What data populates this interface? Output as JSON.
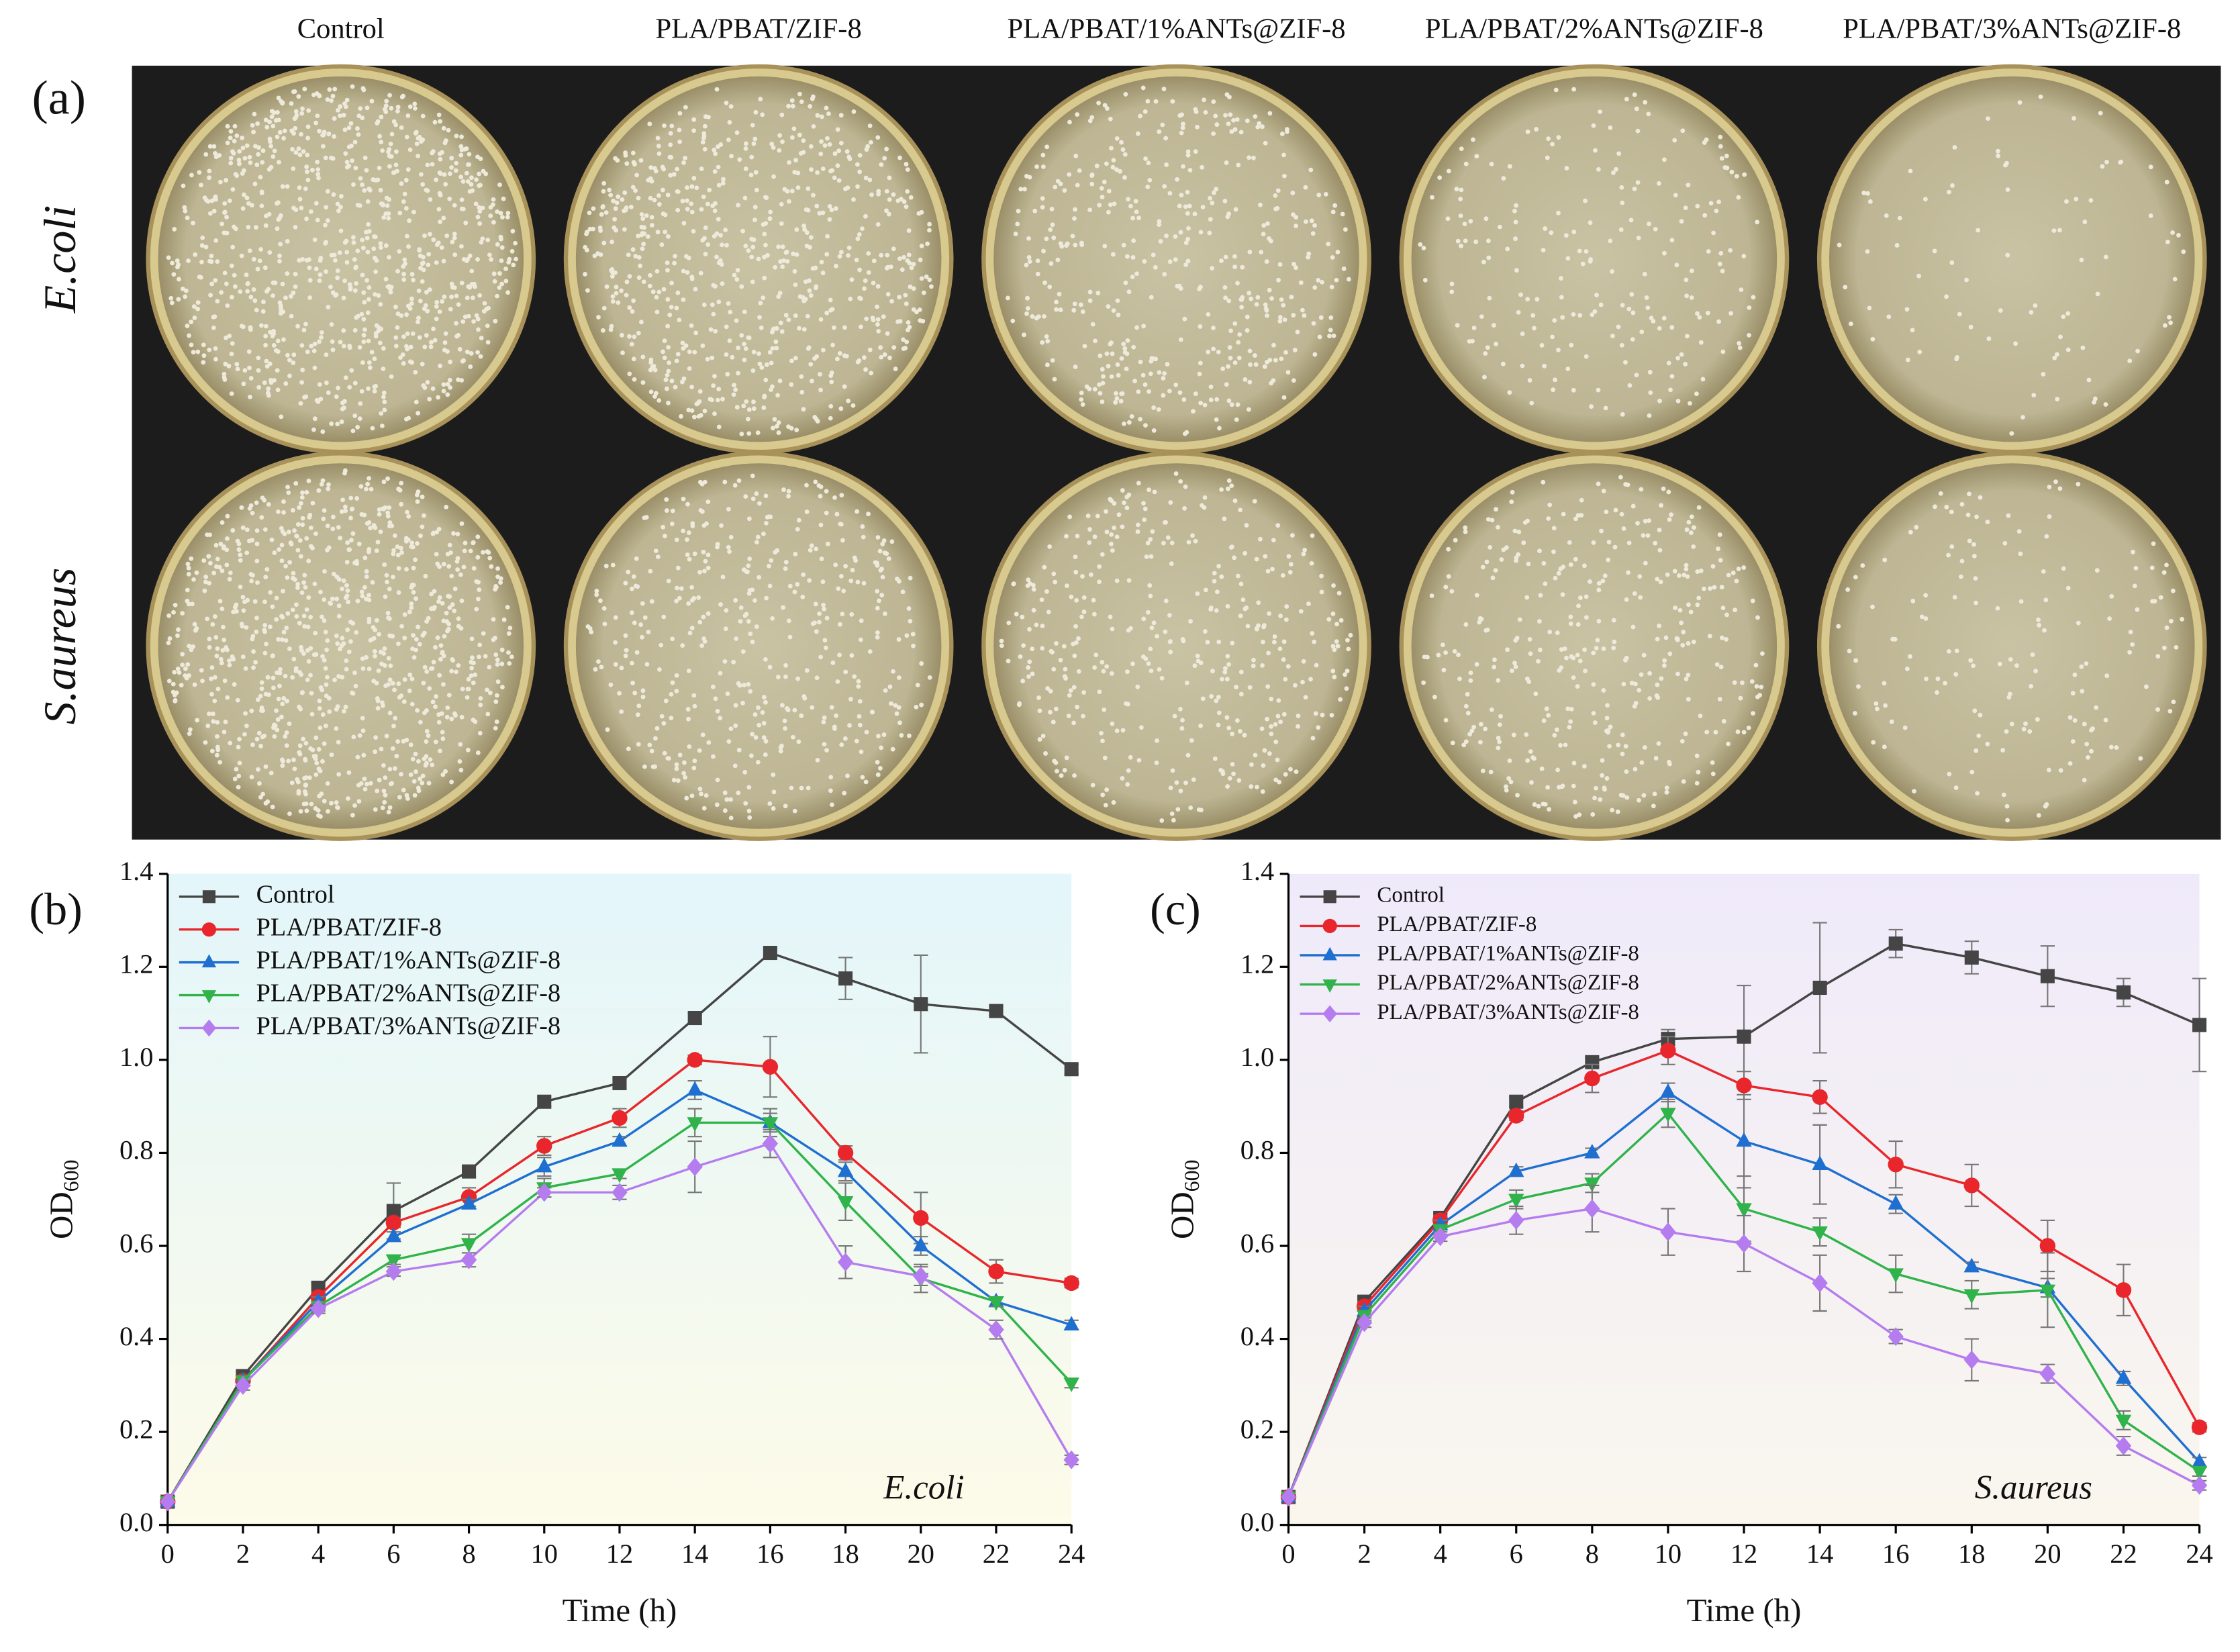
{
  "panel_a": {
    "label": "(a)",
    "columns": [
      "Control",
      "PLA/PBAT/ZIF-8",
      "PLA/PBAT/1%ANTs@ZIF-8",
      "PLA/PBAT/2%ANTs@ZIF-8",
      "PLA/PBAT/3%ANTs@ZIF-8"
    ],
    "rows": [
      "E.coli",
      "S.aureus"
    ]
  },
  "chart_data": [
    {
      "type": "line",
      "panel_label": "(b)",
      "annotation": "E.coli",
      "x_label": "Time (h)",
      "y_label": "OD",
      "y_label_subscript": "600",
      "x": [
        0,
        2,
        4,
        6,
        8,
        10,
        12,
        14,
        16,
        18,
        20,
        22,
        24
      ],
      "xlim": [
        0,
        24
      ],
      "xticks": [
        0,
        2,
        4,
        6,
        8,
        10,
        12,
        14,
        16,
        18,
        20,
        22,
        24
      ],
      "ylim": [
        0,
        1.4
      ],
      "yticks": [
        {
          "value": 0,
          "label": "0.0"
        },
        0.2,
        0.4,
        0.6,
        0.8,
        {
          "value": 1,
          "label": "1.0"
        },
        1.2,
        1.4
      ],
      "legend": "upper left",
      "series": [
        {
          "name": "Control",
          "color": "#454545",
          "marker": "square",
          "values": [
            0.05,
            0.32,
            0.51,
            0.675,
            0.76,
            0.91,
            0.95,
            1.09,
            1.23,
            1.175,
            1.12,
            1.105,
            0.98
          ],
          "errors": [
            0,
            0.01,
            0.01,
            0.06,
            0.01,
            0.01,
            0.01,
            0.01,
            0.01,
            0.045,
            0.105,
            0.01,
            0.01
          ]
        },
        {
          "name": "PLA/PBAT/ZIF-8",
          "color": "#e8262b",
          "marker": "circle",
          "values": [
            0.05,
            0.31,
            0.49,
            0.65,
            0.705,
            0.815,
            0.875,
            1.0,
            0.985,
            0.8,
            0.66,
            0.545,
            0.52
          ],
          "errors": [
            0,
            0.01,
            0.01,
            0.01,
            0.02,
            0.02,
            0.02,
            0.01,
            0.065,
            0.015,
            0.055,
            0.025,
            0.01
          ]
        },
        {
          "name": "PLA/PBAT/1%ANTs@ZIF-8",
          "color": "#1f6fd1",
          "marker": "triangle-up",
          "values": [
            0.05,
            0.31,
            0.48,
            0.62,
            0.69,
            0.77,
            0.825,
            0.935,
            0.865,
            0.76,
            0.6,
            0.48,
            0.43
          ],
          "errors": [
            0,
            0.01,
            0.01,
            0.01,
            0.01,
            0.02,
            0.01,
            0.02,
            0.02,
            0.02,
            0.02,
            0.01,
            0.01
          ]
        },
        {
          "name": "PLA/PBAT/2%ANTs@ZIF-8",
          "color": "#2fb34a",
          "marker": "triangle-down",
          "values": [
            0.05,
            0.31,
            0.47,
            0.57,
            0.605,
            0.725,
            0.755,
            0.865,
            0.865,
            0.695,
            0.53,
            0.48,
            0.305
          ],
          "errors": [
            0,
            0.01,
            0.01,
            0.01,
            0.02,
            0.02,
            0.01,
            0.03,
            0.03,
            0.04,
            0.03,
            0.01,
            0.01
          ]
        },
        {
          "name": "PLA/PBAT/3%ANTs@ZIF-8",
          "color": "#b57cf0",
          "marker": "diamond",
          "values": [
            0.05,
            0.3,
            0.465,
            0.545,
            0.57,
            0.715,
            0.715,
            0.77,
            0.82,
            0.565,
            0.535,
            0.42,
            0.14
          ],
          "errors": [
            0,
            0.01,
            0.01,
            0.01,
            0.015,
            0.01,
            0.015,
            0.055,
            0.03,
            0.035,
            0.02,
            0.02,
            0.01
          ]
        }
      ]
    },
    {
      "type": "line",
      "panel_label": "(c)",
      "annotation": "S.aureus",
      "x_label": "Time (h)",
      "y_label": "OD",
      "y_label_subscript": "600",
      "x": [
        0,
        2,
        4,
        6,
        8,
        10,
        12,
        14,
        16,
        18,
        20,
        22,
        24
      ],
      "xlim": [
        0,
        24
      ],
      "xticks": [
        0,
        2,
        4,
        6,
        8,
        10,
        12,
        14,
        16,
        18,
        20,
        22,
        24
      ],
      "ylim": [
        0,
        1.4
      ],
      "yticks": [
        {
          "value": 0,
          "label": "0.0"
        },
        0.2,
        0.4,
        0.6,
        0.8,
        {
          "value": 1,
          "label": "1.0"
        },
        1.2,
        1.4
      ],
      "legend": "upper left",
      "series": [
        {
          "name": "Control",
          "color": "#454545",
          "marker": "square",
          "values": [
            0.06,
            0.48,
            0.66,
            0.91,
            0.995,
            1.045,
            1.05,
            1.155,
            1.25,
            1.22,
            1.18,
            1.145,
            1.075
          ],
          "errors": [
            0,
            0.01,
            0.01,
            0.01,
            0.01,
            0.02,
            0.11,
            0.14,
            0.03,
            0.035,
            0.065,
            0.03,
            0.1
          ]
        },
        {
          "name": "PLA/PBAT/ZIF-8",
          "color": "#e8262b",
          "marker": "circle",
          "values": [
            0.06,
            0.47,
            0.655,
            0.88,
            0.96,
            1.02,
            0.945,
            0.92,
            0.775,
            0.73,
            0.6,
            0.505,
            0.21
          ],
          "errors": [
            0,
            0.01,
            0.01,
            0.01,
            0.03,
            0.03,
            0.03,
            0.035,
            0.05,
            0.045,
            0.055,
            0.055,
            0.01
          ]
        },
        {
          "name": "PLA/PBAT/1%ANTs@ZIF-8",
          "color": "#1f6fd1",
          "marker": "triangle-up",
          "values": [
            0.06,
            0.46,
            0.645,
            0.76,
            0.8,
            0.93,
            0.825,
            0.775,
            0.69,
            0.555,
            0.51,
            0.315,
            0.135
          ],
          "errors": [
            0,
            0.01,
            0.01,
            0.01,
            0.01,
            0.02,
            0.1,
            0.085,
            0.02,
            0.01,
            0.02,
            0.015,
            0.01
          ]
        },
        {
          "name": "PLA/PBAT/2%ANTs@ZIF-8",
          "color": "#2fb34a",
          "marker": "triangle-down",
          "values": [
            0.06,
            0.45,
            0.635,
            0.7,
            0.735,
            0.885,
            0.68,
            0.63,
            0.54,
            0.495,
            0.505,
            0.225,
            0.115
          ],
          "errors": [
            0,
            0.01,
            0.01,
            0.02,
            0.02,
            0.03,
            0.07,
            0.03,
            0.04,
            0.03,
            0.08,
            0.02,
            0.01
          ]
        },
        {
          "name": "PLA/PBAT/3%ANTs@ZIF-8",
          "color": "#b57cf0",
          "marker": "diamond",
          "values": [
            0.06,
            0.435,
            0.62,
            0.655,
            0.68,
            0.63,
            0.605,
            0.52,
            0.405,
            0.355,
            0.325,
            0.17,
            0.085
          ],
          "errors": [
            0,
            0.01,
            0.01,
            0.03,
            0.05,
            0.05,
            0.06,
            0.06,
            0.015,
            0.045,
            0.02,
            0.02,
            0.01
          ]
        }
      ]
    }
  ]
}
